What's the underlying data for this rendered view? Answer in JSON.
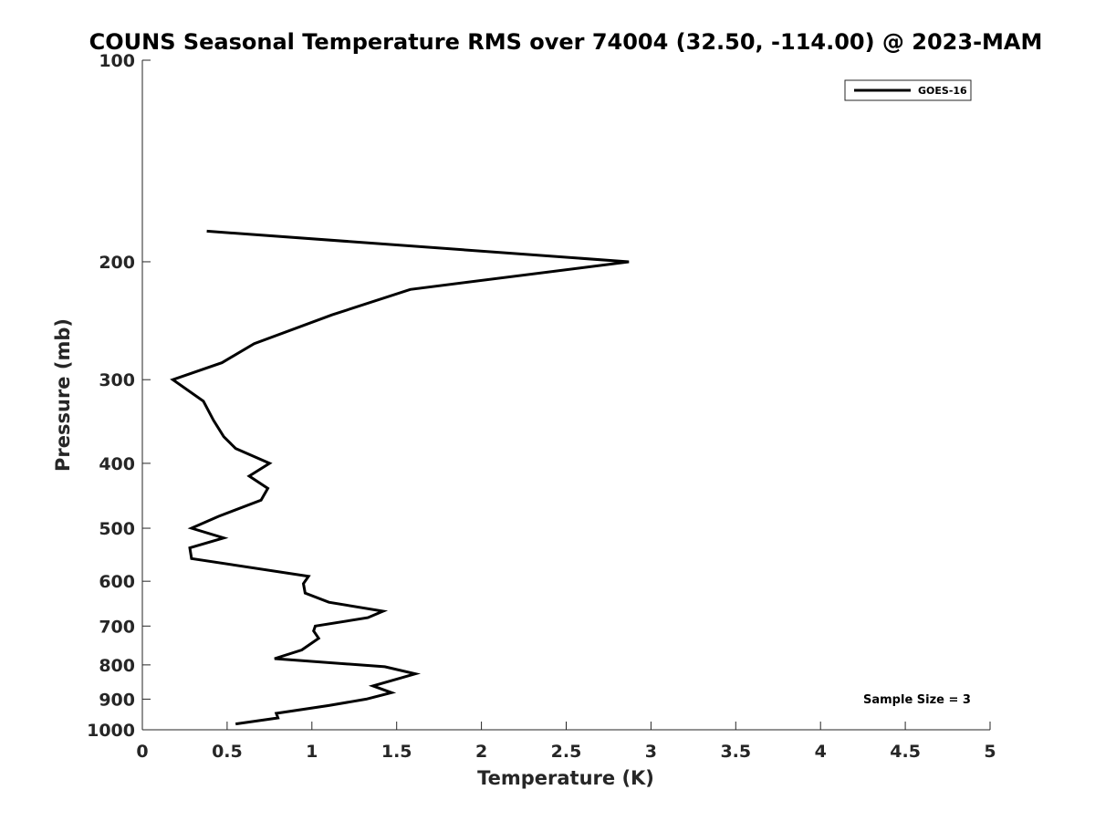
{
  "chart_data": {
    "type": "line",
    "title": "COUNS Seasonal Temperature RMS over 74004 (32.50, -114.00) @ 2023-MAM",
    "xlabel": "Temperature (K)",
    "ylabel": "Pressure (mb)",
    "xlim": [
      0,
      5
    ],
    "ylim": [
      100,
      1000
    ],
    "y_scale": "log",
    "y_reversed": true,
    "x_ticks": [
      0,
      0.5,
      1,
      1.5,
      2,
      2.5,
      3,
      3.5,
      4,
      4.5,
      5
    ],
    "x_tick_labels": [
      "0",
      "0.5",
      "1",
      "1.5",
      "2",
      "2.5",
      "3",
      "3.5",
      "4",
      "4.5",
      "5"
    ],
    "y_ticks": [
      100,
      200,
      300,
      400,
      500,
      600,
      700,
      800,
      900,
      1000
    ],
    "y_tick_labels": [
      "100",
      "200",
      "300",
      "400",
      "500",
      "600",
      "700",
      "800",
      "900",
      "1000"
    ],
    "grid": false,
    "legend_position": "top-right",
    "annotation": "Sample Size = 3",
    "series": [
      {
        "name": "GOES-16",
        "color": "#000000",
        "points": [
          {
            "x": 0.38,
            "p": 180
          },
          {
            "x": 2.87,
            "p": 200
          },
          {
            "x": 1.58,
            "p": 220
          },
          {
            "x": 1.12,
            "p": 240
          },
          {
            "x": 0.66,
            "p": 265
          },
          {
            "x": 0.47,
            "p": 283
          },
          {
            "x": 0.18,
            "p": 300
          },
          {
            "x": 0.36,
            "p": 323
          },
          {
            "x": 0.42,
            "p": 345
          },
          {
            "x": 0.48,
            "p": 365
          },
          {
            "x": 0.55,
            "p": 380
          },
          {
            "x": 0.75,
            "p": 400
          },
          {
            "x": 0.63,
            "p": 418
          },
          {
            "x": 0.74,
            "p": 436
          },
          {
            "x": 0.7,
            "p": 454
          },
          {
            "x": 0.45,
            "p": 480
          },
          {
            "x": 0.29,
            "p": 500
          },
          {
            "x": 0.48,
            "p": 517
          },
          {
            "x": 0.28,
            "p": 535
          },
          {
            "x": 0.29,
            "p": 555
          },
          {
            "x": 0.98,
            "p": 590
          },
          {
            "x": 0.95,
            "p": 605
          },
          {
            "x": 0.96,
            "p": 625
          },
          {
            "x": 1.1,
            "p": 645
          },
          {
            "x": 1.42,
            "p": 665
          },
          {
            "x": 1.33,
            "p": 680
          },
          {
            "x": 1.02,
            "p": 700
          },
          {
            "x": 1.01,
            "p": 712
          },
          {
            "x": 1.04,
            "p": 730
          },
          {
            "x": 0.94,
            "p": 760
          },
          {
            "x": 0.78,
            "p": 783
          },
          {
            "x": 1.43,
            "p": 805
          },
          {
            "x": 1.61,
            "p": 825
          },
          {
            "x": 1.36,
            "p": 860
          },
          {
            "x": 1.47,
            "p": 880
          },
          {
            "x": 1.32,
            "p": 900
          },
          {
            "x": 1.1,
            "p": 920
          },
          {
            "x": 0.79,
            "p": 945
          },
          {
            "x": 0.8,
            "p": 960
          },
          {
            "x": 0.55,
            "p": 980
          }
        ]
      }
    ]
  }
}
